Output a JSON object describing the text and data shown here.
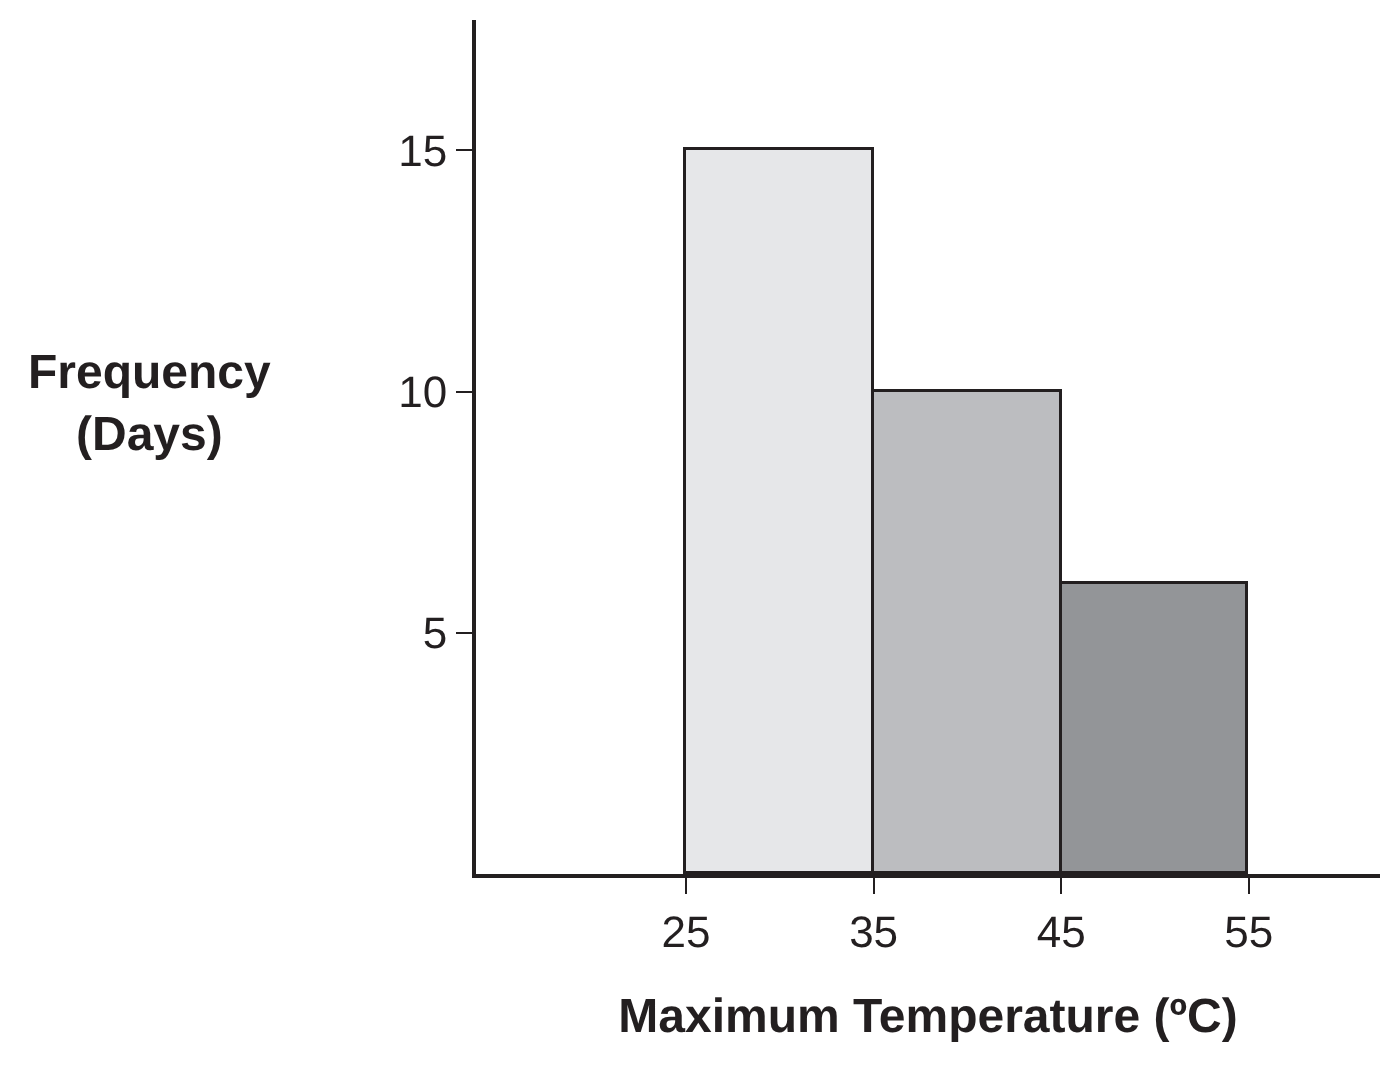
{
  "chart_data": {
    "type": "histogram",
    "xlabel": "Maximum Temperature (ºC)",
    "ylabel": "Frequency\n(Days)",
    "bins": [
      25,
      35,
      45,
      55
    ],
    "values": [
      15,
      10,
      6
    ],
    "colors": [
      "#e6e7e9",
      "#bcbdc0",
      "#939598"
    ],
    "xlim": [
      13.8,
      62
    ],
    "ylim": [
      0,
      17.7
    ],
    "xticks": [
      25,
      35,
      45,
      55
    ],
    "yticks": [
      5,
      10,
      15
    ]
  }
}
